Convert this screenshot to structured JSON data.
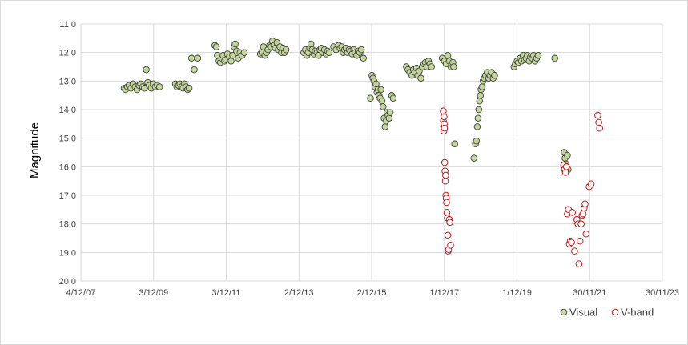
{
  "chart_data": {
    "type": "scatter",
    "title": "",
    "ylabel": "Magnitude",
    "xlabel": "",
    "y_inverted": true,
    "ylim": [
      20.0,
      11.0
    ],
    "xlim": [
      "2007-12-04",
      "2023-11-30"
    ],
    "y_ticks": [
      "11.0",
      "12.0",
      "13.0",
      "14.0",
      "15.0",
      "16.0",
      "17.0",
      "18.0",
      "19.0",
      "20.0"
    ],
    "x_tick_labels": [
      "4/12/07",
      "3/12/09",
      "3/12/11",
      "2/12/13",
      "2/12/15",
      "1/12/17",
      "1/12/19",
      "30/11/21",
      "30/11/23"
    ],
    "x_tick_dates": [
      "2007-12-04",
      "2009-12-03",
      "2011-12-03",
      "2013-12-02",
      "2015-12-02",
      "2017-12-01",
      "2019-12-01",
      "2021-11-30",
      "2023-11-30"
    ],
    "grid": true,
    "legend_position": "bottom-right",
    "series": [
      {
        "name": "Visual",
        "marker": "filled-circle",
        "fill_color": "#c4d79b",
        "edge_color": "#3f3f3f",
        "points": [
          [
            "2009-02-10",
            13.25
          ],
          [
            "2009-02-25",
            13.3
          ],
          [
            "2009-03-15",
            13.2
          ],
          [
            "2009-04-01",
            13.15
          ],
          [
            "2009-04-20",
            13.25
          ],
          [
            "2009-05-10",
            13.1
          ],
          [
            "2009-06-01",
            13.2
          ],
          [
            "2009-06-20",
            13.3
          ],
          [
            "2009-07-10",
            13.15
          ],
          [
            "2009-07-25",
            13.1
          ],
          [
            "2009-08-15",
            13.2
          ],
          [
            "2009-09-01",
            13.25
          ],
          [
            "2009-09-20",
            12.6
          ],
          [
            "2009-10-05",
            13.05
          ],
          [
            "2009-10-20",
            13.15
          ],
          [
            "2009-11-10",
            13.25
          ],
          [
            "2009-12-01",
            13.1
          ],
          [
            "2009-12-20",
            13.2
          ],
          [
            "2010-01-10",
            13.15
          ],
          [
            "2010-02-01",
            13.2
          ],
          [
            "2010-07-10",
            13.1
          ],
          [
            "2010-07-25",
            13.2
          ],
          [
            "2010-08-10",
            13.15
          ],
          [
            "2010-08-25",
            13.1
          ],
          [
            "2010-09-10",
            13.2
          ],
          [
            "2010-09-25",
            13.25
          ],
          [
            "2010-10-10",
            13.1
          ],
          [
            "2010-10-25",
            13.2
          ],
          [
            "2010-11-10",
            13.3
          ],
          [
            "2010-11-25",
            13.25
          ],
          [
            "2010-12-20",
            12.2
          ],
          [
            "2011-01-15",
            12.6
          ],
          [
            "2011-02-20",
            12.2
          ],
          [
            "2011-08-10",
            11.75
          ],
          [
            "2011-08-25",
            11.8
          ],
          [
            "2011-09-05",
            12.1
          ],
          [
            "2011-09-20",
            12.3
          ],
          [
            "2011-10-05",
            12.35
          ],
          [
            "2011-10-20",
            12.2
          ],
          [
            "2011-11-01",
            12.1
          ],
          [
            "2011-11-15",
            12.3
          ],
          [
            "2011-12-01",
            12.25
          ],
          [
            "2011-12-15",
            12.05
          ],
          [
            "2012-01-05",
            12.15
          ],
          [
            "2012-01-20",
            12.3
          ],
          [
            "2012-02-05",
            12.1
          ],
          [
            "2012-02-20",
            11.8
          ],
          [
            "2012-03-01",
            11.7
          ],
          [
            "2012-03-15",
            11.95
          ],
          [
            "2012-04-01",
            12.2
          ],
          [
            "2012-04-20",
            12.0
          ],
          [
            "2012-05-10",
            12.1
          ],
          [
            "2012-06-01",
            12.0
          ],
          [
            "2012-11-10",
            12.05
          ],
          [
            "2012-11-25",
            12.0
          ],
          [
            "2012-12-10",
            11.8
          ],
          [
            "2012-12-25",
            12.1
          ],
          [
            "2013-01-10",
            12.0
          ],
          [
            "2013-01-25",
            11.9
          ],
          [
            "2013-02-10",
            11.75
          ],
          [
            "2013-02-25",
            11.8
          ],
          [
            "2013-03-10",
            11.6
          ],
          [
            "2013-03-25",
            11.75
          ],
          [
            "2013-04-10",
            11.85
          ],
          [
            "2013-04-25",
            11.65
          ],
          [
            "2013-05-10",
            11.9
          ],
          [
            "2013-05-25",
            11.8
          ],
          [
            "2013-06-10",
            12.0
          ],
          [
            "2013-06-25",
            11.85
          ],
          [
            "2013-07-10",
            12.0
          ],
          [
            "2013-07-25",
            11.9
          ],
          [
            "2014-01-20",
            12.0
          ],
          [
            "2014-02-05",
            11.9
          ],
          [
            "2014-02-20",
            12.1
          ],
          [
            "2014-03-05",
            12.0
          ],
          [
            "2014-03-20",
            11.85
          ],
          [
            "2014-04-01",
            11.7
          ],
          [
            "2014-04-15",
            11.9
          ],
          [
            "2014-05-01",
            12.05
          ],
          [
            "2014-05-15",
            11.95
          ],
          [
            "2014-06-01",
            12.0
          ],
          [
            "2014-06-15",
            12.1
          ],
          [
            "2014-07-01",
            11.9
          ],
          [
            "2014-07-15",
            11.85
          ],
          [
            "2014-08-01",
            12.0
          ],
          [
            "2014-08-15",
            11.9
          ],
          [
            "2014-09-01",
            12.05
          ],
          [
            "2014-09-15",
            11.95
          ],
          [
            "2014-10-01",
            12.0
          ],
          [
            "2014-11-15",
            11.8
          ],
          [
            "2014-12-10",
            11.9
          ],
          [
            "2015-01-05",
            11.75
          ],
          [
            "2015-01-20",
            11.85
          ],
          [
            "2015-02-05",
            11.8
          ],
          [
            "2015-02-20",
            12.0
          ],
          [
            "2015-03-05",
            11.9
          ],
          [
            "2015-03-20",
            11.85
          ],
          [
            "2015-04-05",
            12.0
          ],
          [
            "2015-04-20",
            11.9
          ],
          [
            "2015-05-05",
            11.95
          ],
          [
            "2015-05-20",
            12.05
          ],
          [
            "2015-06-05",
            11.9
          ],
          [
            "2015-06-20",
            12.0
          ],
          [
            "2015-07-05",
            12.1
          ],
          [
            "2015-07-20",
            11.95
          ],
          [
            "2015-08-05",
            12.0
          ],
          [
            "2015-08-20",
            11.9
          ],
          [
            "2015-09-10",
            12.2
          ],
          [
            "2015-11-20",
            13.6
          ],
          [
            "2015-12-05",
            12.8
          ],
          [
            "2015-12-15",
            12.9
          ],
          [
            "2015-12-25",
            13.0
          ],
          [
            "2016-01-05",
            13.2
          ],
          [
            "2016-01-15",
            13.1
          ],
          [
            "2016-01-25",
            13.4
          ],
          [
            "2016-02-05",
            13.3
          ],
          [
            "2016-02-15",
            13.5
          ],
          [
            "2016-02-25",
            13.6
          ],
          [
            "2016-03-05",
            13.3
          ],
          [
            "2016-03-15",
            13.7
          ],
          [
            "2016-03-25",
            13.9
          ],
          [
            "2016-04-05",
            14.3
          ],
          [
            "2016-04-15",
            14.6
          ],
          [
            "2016-04-25",
            14.4
          ],
          [
            "2016-05-05",
            14.1
          ],
          [
            "2016-05-15",
            14.2
          ],
          [
            "2016-05-25",
            14.3
          ],
          [
            "2016-06-05",
            14.1
          ],
          [
            "2016-06-20",
            13.5
          ],
          [
            "2016-07-05",
            13.6
          ],
          [
            "2016-11-15",
            12.5
          ],
          [
            "2016-12-01",
            12.6
          ],
          [
            "2016-12-20",
            12.7
          ],
          [
            "2017-01-10",
            12.8
          ],
          [
            "2017-01-25",
            12.6
          ],
          [
            "2017-02-10",
            12.7
          ],
          [
            "2017-02-25",
            12.55
          ],
          [
            "2017-03-10",
            12.8
          ],
          [
            "2017-03-25",
            12.65
          ],
          [
            "2017-04-10",
            12.9
          ],
          [
            "2017-04-25",
            12.5
          ],
          [
            "2017-05-10",
            12.4
          ],
          [
            "2017-05-25",
            12.35
          ],
          [
            "2017-06-10",
            12.5
          ],
          [
            "2017-06-25",
            12.3
          ],
          [
            "2017-07-10",
            12.4
          ],
          [
            "2017-07-25",
            12.5
          ],
          [
            "2017-11-10",
            12.2
          ],
          [
            "2017-12-01",
            12.3
          ],
          [
            "2017-12-20",
            12.4
          ],
          [
            "2018-01-05",
            12.1
          ],
          [
            "2018-01-20",
            12.3
          ],
          [
            "2018-02-05",
            12.5
          ],
          [
            "2018-02-15",
            12.4
          ],
          [
            "2018-02-25",
            12.35
          ],
          [
            "2018-03-05",
            12.5
          ],
          [
            "2018-03-15",
            15.2
          ],
          [
            "2018-09-25",
            15.7
          ],
          [
            "2018-10-10",
            15.2
          ],
          [
            "2018-10-20",
            15.1
          ],
          [
            "2018-10-28",
            14.6
          ],
          [
            "2018-11-05",
            14.3
          ],
          [
            "2018-11-12",
            14.0
          ],
          [
            "2018-11-20",
            13.7
          ],
          [
            "2018-11-28",
            13.5
          ],
          [
            "2018-12-05",
            13.3
          ],
          [
            "2018-12-15",
            13.2
          ],
          [
            "2018-12-25",
            13.0
          ],
          [
            "2019-01-05",
            12.9
          ],
          [
            "2019-01-20",
            12.8
          ],
          [
            "2019-02-05",
            12.7
          ],
          [
            "2019-02-20",
            12.9
          ],
          [
            "2019-03-05",
            12.8
          ],
          [
            "2019-03-20",
            12.7
          ],
          [
            "2019-04-05",
            12.9
          ],
          [
            "2019-04-20",
            12.8
          ],
          [
            "2019-11-01",
            12.5
          ],
          [
            "2019-11-15",
            12.4
          ],
          [
            "2019-12-01",
            12.3
          ],
          [
            "2019-12-15",
            12.35
          ],
          [
            "2020-01-01",
            12.2
          ],
          [
            "2020-01-15",
            12.3
          ],
          [
            "2020-02-01",
            12.1
          ],
          [
            "2020-02-15",
            12.25
          ],
          [
            "2020-03-01",
            12.2
          ],
          [
            "2020-03-15",
            12.1
          ],
          [
            "2020-04-01",
            12.3
          ],
          [
            "2020-04-15",
            12.15
          ],
          [
            "2020-05-01",
            12.2
          ],
          [
            "2020-05-15",
            12.1
          ],
          [
            "2020-06-01",
            12.3
          ],
          [
            "2020-06-15",
            12.2
          ],
          [
            "2020-07-01",
            12.1
          ],
          [
            "2020-12-15",
            12.2
          ],
          [
            "2021-03-20",
            15.5
          ],
          [
            "2021-03-28",
            15.7
          ],
          [
            "2021-04-05",
            15.9
          ],
          [
            "2021-04-12",
            16.1
          ],
          [
            "2021-04-20",
            15.6
          ],
          [
            "2021-04-28",
            16.1
          ]
        ]
      },
      {
        "name": "V-band",
        "marker": "open-circle",
        "fill_color": "#ffffff",
        "edge_color": "#c00000",
        "points": [
          [
            "2017-11-20",
            14.05
          ],
          [
            "2017-11-22",
            14.4
          ],
          [
            "2017-11-24",
            14.6
          ],
          [
            "2017-11-26",
            14.75
          ],
          [
            "2017-11-28",
            14.25
          ],
          [
            "2017-11-30",
            14.5
          ],
          [
            "2017-12-02",
            14.65
          ],
          [
            "2017-12-05",
            15.85
          ],
          [
            "2017-12-08",
            16.15
          ],
          [
            "2017-12-11",
            16.5
          ],
          [
            "2017-12-14",
            16.3
          ],
          [
            "2017-12-17",
            17.0
          ],
          [
            "2017-12-20",
            17.1
          ],
          [
            "2017-12-23",
            17.25
          ],
          [
            "2017-12-27",
            17.6
          ],
          [
            "2018-01-01",
            17.8
          ],
          [
            "2018-01-05",
            18.4
          ],
          [
            "2018-01-08",
            18.95
          ],
          [
            "2018-01-12",
            18.9
          ],
          [
            "2018-01-20",
            17.85
          ],
          [
            "2018-01-25",
            17.95
          ],
          [
            "2018-02-01",
            18.75
          ],
          [
            "2021-03-15",
            15.95
          ],
          [
            "2021-03-22",
            16.1
          ],
          [
            "2021-04-01",
            16.2
          ],
          [
            "2021-04-10",
            16.0
          ],
          [
            "2021-04-20",
            17.65
          ],
          [
            "2021-05-01",
            17.5
          ],
          [
            "2021-05-10",
            18.7
          ],
          [
            "2021-05-20",
            18.6
          ],
          [
            "2021-06-01",
            18.65
          ],
          [
            "2021-06-10",
            17.6
          ],
          [
            "2021-07-01",
            18.95
          ],
          [
            "2021-07-15",
            17.9
          ],
          [
            "2021-07-25",
            17.85
          ],
          [
            "2021-08-05",
            18.0
          ],
          [
            "2021-08-15",
            19.4
          ],
          [
            "2021-08-25",
            18.6
          ],
          [
            "2021-09-05",
            18.0
          ],
          [
            "2021-09-15",
            17.7
          ],
          [
            "2021-09-25",
            17.65
          ],
          [
            "2021-10-05",
            17.45
          ],
          [
            "2021-10-15",
            17.3
          ],
          [
            "2021-10-25",
            18.35
          ],
          [
            "2021-11-25",
            16.7
          ],
          [
            "2021-12-15",
            16.6
          ],
          [
            "2022-02-20",
            14.2
          ],
          [
            "2022-03-01",
            14.45
          ],
          [
            "2022-03-10",
            14.65
          ]
        ]
      }
    ]
  }
}
